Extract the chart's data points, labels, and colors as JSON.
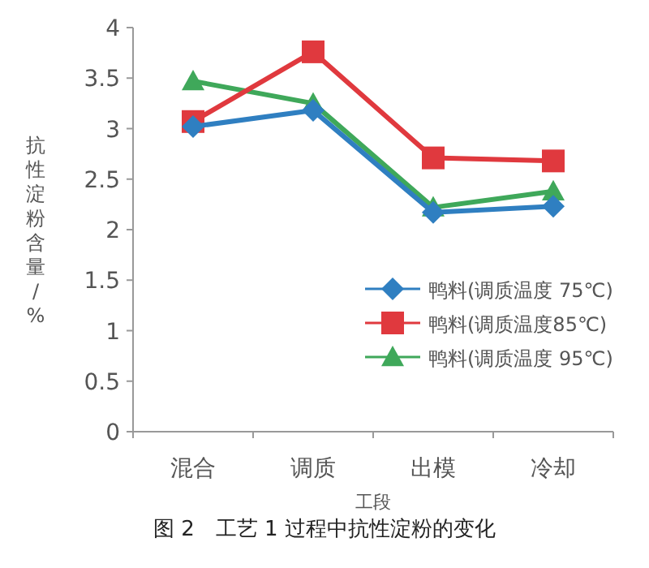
{
  "chart_data": {
    "type": "line",
    "xlabel": "工段",
    "ylabel": "抗性淀粉含量/%",
    "categories": [
      "混合",
      "调质",
      "出模",
      "冷却"
    ],
    "series": [
      {
        "name": "鸭料(调质温度 75℃)",
        "color": "#2f7fc1",
        "marker": "diamond",
        "values": [
          3.02,
          3.18,
          2.17,
          2.23
        ]
      },
      {
        "name": "鸭料(调质温度85℃)",
        "color": "#e0393e",
        "marker": "square",
        "values": [
          3.07,
          3.76,
          2.71,
          2.68
        ]
      },
      {
        "name": "鸭料(调质温度 95℃)",
        "color": "#3fa85a",
        "marker": "triangle",
        "values": [
          3.47,
          3.25,
          2.22,
          2.38
        ]
      }
    ],
    "ylim": [
      0,
      4
    ],
    "yticks": [
      0,
      0.5,
      1,
      1.5,
      2,
      2.5,
      3,
      3.5,
      4
    ],
    "grid": false,
    "legend": "right",
    "line_style": "solid",
    "annotations": [
      "图 2　工艺 1 过程中抗性淀粉的变化"
    ]
  }
}
